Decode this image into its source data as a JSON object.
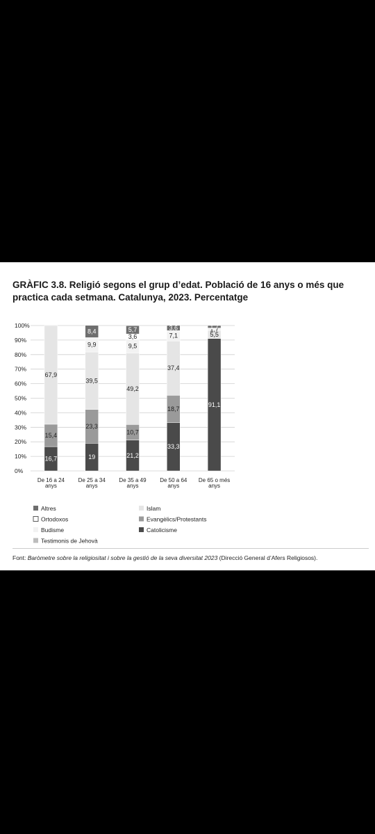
{
  "title": "GRÀFIC 3.8. Religió segons el grup d’edat. Població de 16 anys o més que practica cada setmana. Catalunya, 2023. Percentatge",
  "source": {
    "prefix": "Font: ",
    "italic": "Baròmetre sobre la religiositat i sobre la gestió de la seva diversitat 2023",
    "suffix": " (Direcció General d’Afers Religiosos)."
  },
  "colors": {
    "Catolicisme": "#4a4a4a",
    "Evangèlics/Protestants": "#9a9a9a",
    "Islam": "#e5e5e5",
    "Altres": "#6e6e6e",
    "Ortodoxos": "#ffffff",
    "Budisme": "#f2f2f2",
    "Testimonis de Jehovà": "#bdbdbd"
  },
  "chart_data": {
    "type": "bar",
    "stacked": true,
    "categories": [
      [
        "De 16 a 24",
        "anys"
      ],
      [
        "De 25 a 34",
        "anys"
      ],
      [
        "De 35 a 49",
        "anys"
      ],
      [
        "De 50 a 64",
        "anys"
      ],
      [
        "De 65 o més",
        "anys"
      ]
    ],
    "ylim": [
      0,
      100
    ],
    "yticks": [
      "0%",
      "10%",
      "20%",
      "30%",
      "40%",
      "50%",
      "60%",
      "70%",
      "80%",
      "90%",
      "100%"
    ],
    "grid": true,
    "series": [
      {
        "name": "Catolicisme",
        "values": [
          16.7,
          19,
          21.2,
          33.3,
          91.1
        ],
        "labels": [
          "16,7",
          "19",
          "21,2",
          "33,3",
          "91,1"
        ]
      },
      {
        "name": "Evangèlics/Protestants",
        "values": [
          15.4,
          23.3,
          10.7,
          18.7,
          0
        ],
        "labels": [
          "15,4",
          "23,3",
          "10,7",
          "18,7",
          ""
        ]
      },
      {
        "name": "Islam",
        "values": [
          67.9,
          39.5,
          49.2,
          37.4,
          5.5
        ],
        "labels": [
          "67,9",
          "39,5",
          "49,2",
          "37,4",
          "5,5"
        ]
      },
      {
        "name": "Budisme",
        "values": [
          0,
          9.9,
          9.5,
          7.1,
          1.7
        ],
        "labels": [
          "",
          "9,9",
          "9,5",
          "7,1",
          "1,7"
        ]
      },
      {
        "name": "Ortodoxos",
        "values": [
          0,
          0,
          3.6,
          0,
          0
        ],
        "labels": [
          "",
          "",
          "3,6",
          "",
          ""
        ]
      },
      {
        "name": "Altres",
        "values": [
          0,
          8.4,
          5.7,
          3.6,
          1.7
        ],
        "labels": [
          "",
          "8,4",
          "5,7",
          "3,6",
          "1,7"
        ]
      }
    ],
    "legend": {
      "placement": "bottom",
      "left": [
        "Altres",
        "Ortodoxos",
        "Budisme",
        "Testimonis de Jehovà"
      ],
      "right": [
        "Islam",
        "Evangèlics/Protestants",
        "Catolicisme"
      ]
    }
  }
}
